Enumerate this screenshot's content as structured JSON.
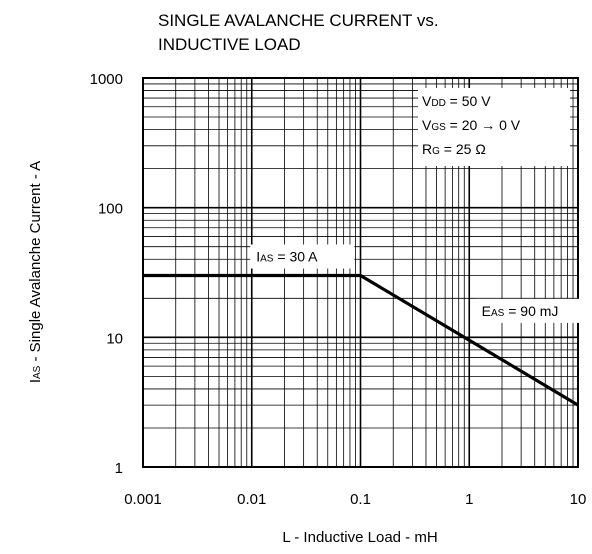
{
  "chart_data": {
    "type": "line",
    "title": {
      "line1": "SINGLE AVALANCHE CURRENT vs.",
      "line2": "INDUCTIVE LOAD"
    },
    "xlabel": "L - Inductive Load - mH",
    "ylabel": {
      "main": "I",
      "sub": "AS",
      "rest": " - Single Avalanche Current - A"
    },
    "x_scale": "log",
    "y_scale": "log",
    "xlim": [
      0.001,
      10
    ],
    "ylim": [
      1,
      1000
    ],
    "x_ticks": [
      {
        "value": 0.001,
        "label": "0.001"
      },
      {
        "value": 0.01,
        "label": "0.01"
      },
      {
        "value": 0.1,
        "label": "0.1"
      },
      {
        "value": 1,
        "label": "1"
      },
      {
        "value": 10,
        "label": "10"
      }
    ],
    "y_ticks": [
      {
        "value": 1,
        "label": "1"
      },
      {
        "value": 10,
        "label": "10"
      },
      {
        "value": 100,
        "label": "100"
      },
      {
        "value": 1000,
        "label": "1000"
      }
    ],
    "grid": true,
    "series": [
      {
        "x": [
          0.001,
          0.1,
          1,
          10
        ],
        "y": [
          30,
          30,
          9.5,
          3
        ]
      }
    ],
    "conditions_box": {
      "position": "top-right",
      "lines": [
        {
          "main": "V",
          "sub": "DD",
          "rest": " = 50 V"
        },
        {
          "main": "V",
          "sub": "GS",
          "rest": " = 20 → 0 V"
        },
        {
          "main": "R",
          "sub": "G",
          "rest": " = 25 Ω"
        }
      ]
    },
    "annotations": [
      {
        "main": "I",
        "sub": "AS",
        "rest": " = 30 A",
        "x": 0.011,
        "y": 42
      },
      {
        "main": "E",
        "sub": "AS",
        "rest": " = 90 mJ",
        "x": 1.3,
        "y": 16
      }
    ]
  }
}
